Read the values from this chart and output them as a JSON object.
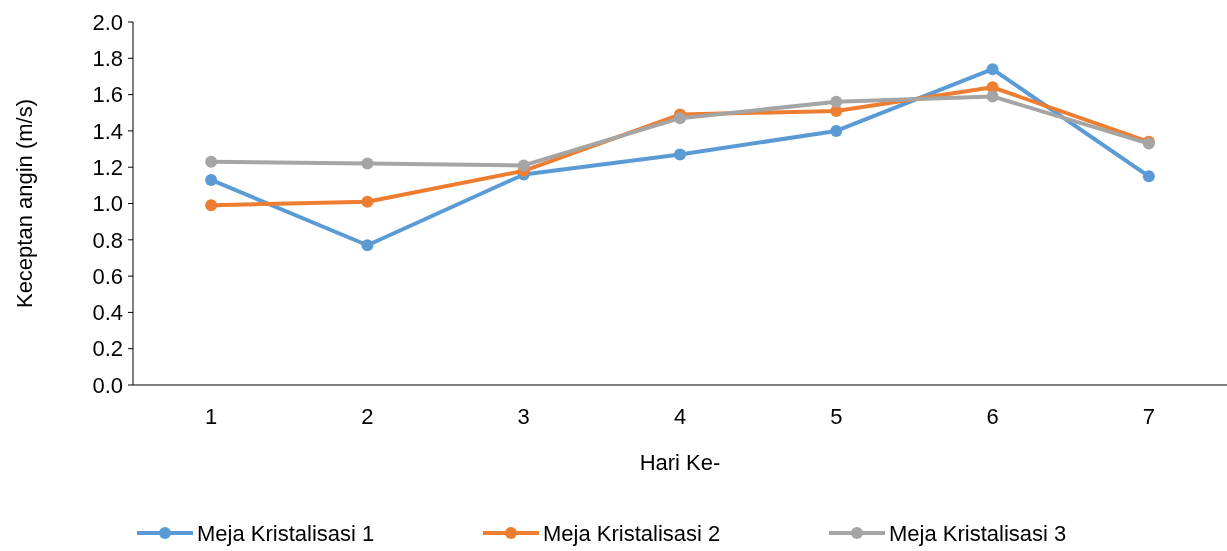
{
  "chart_data": {
    "type": "line",
    "xlabel": "Hari Ke-",
    "ylabel": "Keceptan angin  (m/s)",
    "categories": [
      "1",
      "2",
      "3",
      "4",
      "5",
      "6",
      "7"
    ],
    "series": [
      {
        "name": "Meja Kristalisasi 1",
        "color": "#5b9bd5",
        "values": [
          1.13,
          0.77,
          1.16,
          1.27,
          1.4,
          1.74,
          1.15
        ]
      },
      {
        "name": "Meja Kristalisasi 2",
        "color": "#ed7d31",
        "values": [
          0.99,
          1.01,
          1.18,
          1.49,
          1.51,
          1.64,
          1.34
        ]
      },
      {
        "name": "Meja Kristalisasi 3",
        "color": "#a5a5a5",
        "values": [
          1.23,
          1.22,
          1.21,
          1.47,
          1.56,
          1.59,
          1.33
        ]
      }
    ],
    "ylim": [
      0,
      2
    ],
    "yticks": [
      {
        "value": 0,
        "label": "0.0"
      },
      {
        "value": 0.2,
        "label": "0.2"
      },
      {
        "value": 0.4,
        "label": "0.4"
      },
      {
        "value": 0.6,
        "label": "0.6"
      },
      {
        "value": 0.8,
        "label": "0.8"
      },
      {
        "value": 1,
        "label": "1.0"
      },
      {
        "value": 1.2,
        "label": "1.2"
      },
      {
        "value": 1.4,
        "label": "1.4"
      },
      {
        "value": 1.6,
        "label": "1.6"
      },
      {
        "value": 1.8,
        "label": "1.8"
      },
      {
        "value": 2,
        "label": "2.0"
      }
    ],
    "grid": false,
    "legend": "bottom",
    "marker": "circle",
    "line_style": "solid"
  }
}
